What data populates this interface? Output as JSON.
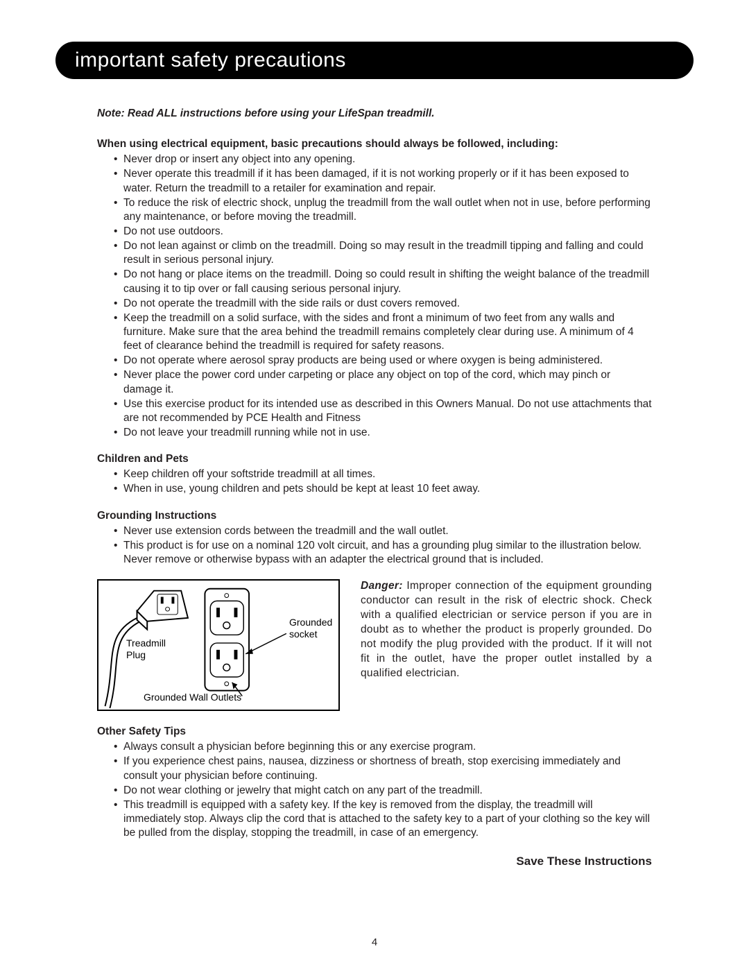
{
  "header_title": "important safety precautions",
  "note_line": "Note: Read ALL instructions before using your LifeSpan treadmill.",
  "intro_line": "When using electrical equipment, basic precautions should always be followed, including:",
  "main_bullets": [
    "Never drop or insert any object into any opening.",
    "Never operate this treadmill if it has been damaged, if it is not working properly or if it has been exposed to water.  Return the treadmill to a retailer for examination and repair.",
    "To reduce the risk of electric shock, unplug the treadmill from the wall outlet when not in use, before performing any maintenance, or before moving the treadmill.",
    "Do not use outdoors.",
    "Do not lean against or climb on the treadmill. Doing so may result in the treadmill tipping and falling and could result in serious personal injury.",
    "Do not hang or place items on the treadmill.  Doing so could result in shifting the weight balance of the treadmill causing it to tip over or fall causing serious personal injury.",
    "Do not operate the treadmill with the side rails or dust covers removed.",
    "Keep the treadmill on a solid surface, with the sides and front a minimum of two feet from any walls and furniture.  Make sure that the area behind the treadmill remains completely clear during use.  A minimum of 4 feet of clearance behind the treadmill is required for safety reasons.",
    "Do not operate where aerosol spray products are being used or where oxygen is being administered.",
    "Never place the power cord under carpeting or place any object on top of the cord, which may pinch or damage it.",
    "Use this exercise product for its intended use as described in this Owners Manual.  Do not use attachments that are not recommended by PCE Health and Fitness",
    "Do not leave your treadmill running while not in use."
  ],
  "children_heading": "Children and Pets",
  "children_bullets": [
    "Keep children off your softstride treadmill at all times.",
    "When in use, young children and pets should be kept at least 10 feet away."
  ],
  "grounding_heading": "Grounding Instructions",
  "grounding_bullets": [
    "Never use extension cords between the treadmill and the wall outlet.",
    "This product is for use on a nominal 120 volt circuit, and has a grounding plug similar to the illustration below. Never remove or otherwise bypass with an adapter the electrical ground that is included."
  ],
  "diagram": {
    "label_plug": "Treadmill Plug",
    "label_outlets": "Grounded Wall Outlets",
    "label_socket": "Grounded socket"
  },
  "danger_word": "Danger:",
  "danger_text": " Improper connection of the equipment grounding conductor can result in the risk of electric shock. Check with a qualified electrician or service person if you are in doubt as to whether the product is properly grounded. Do not modify the plug provided with the product. If it will not fit in the outlet, have the proper outlet installed by a qualified electrician.",
  "other_heading": "Other Safety Tips",
  "other_bullets": [
    "Always consult a physician before beginning this or any exercise program.",
    "If you experience chest pains, nausea, dizziness or shortness of breath, stop exercising immediately and consult your physician before continuing.",
    "Do not wear clothing or jewelry that might catch on any part of the treadmill.",
    "This treadmill is equipped with a safety key.  If the key is removed from the display, the treadmill will immediately stop.  Always clip the cord that is attached to the safety key to a part of your clothing so the key will be pulled from the display, stopping the treadmill, in case of an emergency."
  ],
  "save_line": "Save These Instructions",
  "page_number": "4"
}
